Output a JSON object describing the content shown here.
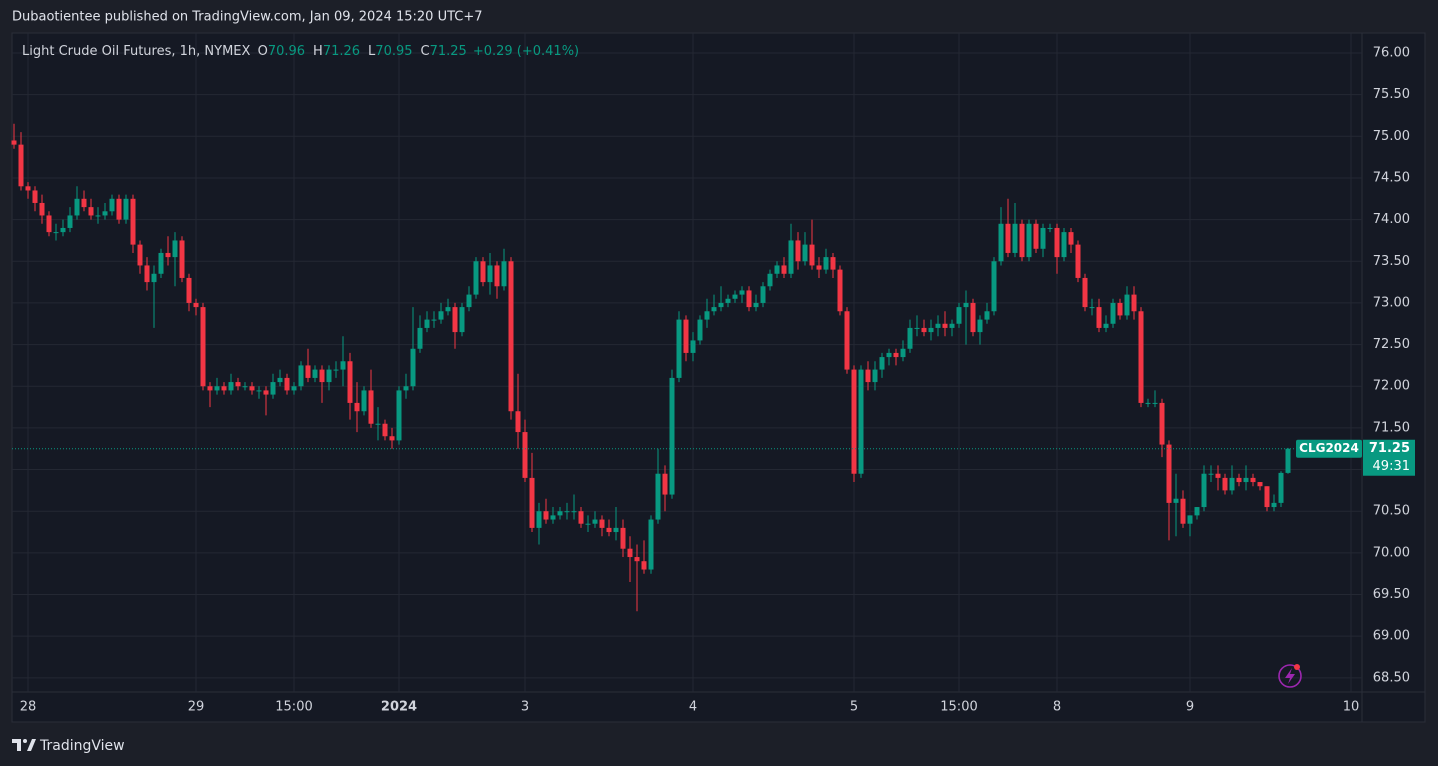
{
  "header": {
    "publisher": "Dubaotientee published on TradingView.com, Jan 09, 2024 15:20 UTC+7"
  },
  "footer": {
    "brand": "TradingView"
  },
  "chart_data": {
    "type": "candlestick",
    "title": "Light Crude Oil Futures, 1h, NYMEX",
    "ohlc_labels": [
      "O",
      "H",
      "L",
      "C"
    ],
    "change_label": "+0.29 (+0.41%)",
    "symbol": "CLG2024",
    "countdown": "49:31",
    "up_color": "#089981",
    "down_color": "#f23645",
    "grid": true,
    "ylim": [
      67.97,
      76.24
    ],
    "yticks": [
      {
        "value": 68.5,
        "label": "68.50"
      },
      {
        "value": 69,
        "label": "69.00"
      },
      {
        "value": 69.5,
        "label": "69.50"
      },
      {
        "value": 70,
        "label": "70.00"
      },
      {
        "value": 70.5,
        "label": "70.50"
      },
      {
        "value": 71,
        "label": "71.00"
      },
      {
        "value": 71.5,
        "label": "71.50"
      },
      {
        "value": 72,
        "label": "72.00"
      },
      {
        "value": 72.5,
        "label": "72.50"
      },
      {
        "value": 73,
        "label": "73.00"
      },
      {
        "value": 73.5,
        "label": "73.50"
      },
      {
        "value": 74,
        "label": "74.00"
      },
      {
        "value": 74.5,
        "label": "74.50"
      },
      {
        "value": 75,
        "label": "75.00"
      },
      {
        "value": 75.5,
        "label": "75.50"
      },
      {
        "value": 76,
        "label": "76.00"
      }
    ],
    "categories": [
      null,
      null,
      "28",
      null,
      null,
      null,
      null,
      null,
      null,
      null,
      null,
      null,
      null,
      null,
      null,
      null,
      null,
      null,
      null,
      null,
      null,
      null,
      null,
      null,
      null,
      null,
      "29",
      null,
      null,
      null,
      null,
      null,
      null,
      null,
      null,
      null,
      null,
      null,
      null,
      null,
      "15:00",
      null,
      null,
      null,
      null,
      null,
      null,
      null,
      null,
      null,
      null,
      null,
      null,
      null,
      null,
      "2024",
      null,
      null,
      null,
      null,
      null,
      null,
      null,
      null,
      null,
      null,
      null,
      null,
      null,
      null,
      null,
      null,
      null,
      "3",
      null,
      null,
      null,
      null,
      null,
      null,
      null,
      null,
      null,
      null,
      null,
      null,
      null,
      null,
      null,
      null,
      null,
      null,
      null,
      null,
      null,
      null,
      null,
      "4",
      null,
      null,
      null,
      null,
      null,
      null,
      null,
      null,
      null,
      null,
      null,
      null,
      null,
      null,
      null,
      null,
      null,
      null,
      null,
      null,
      null,
      null,
      "5",
      null,
      null,
      null,
      null,
      null,
      null,
      null,
      null,
      null,
      null,
      null,
      null,
      null,
      null,
      "15:00",
      null,
      null,
      null,
      null,
      null,
      null,
      null,
      null,
      null,
      null,
      null,
      null,
      null,
      "8",
      null,
      null,
      null,
      null,
      null,
      null,
      null,
      null,
      null,
      null,
      null,
      null,
      null,
      null,
      null,
      null,
      null,
      null,
      "9",
      null,
      null,
      null,
      null,
      null,
      null,
      null,
      null,
      null,
      null,
      null,
      null,
      null,
      null,
      null,
      null,
      null,
      null,
      null,
      null,
      null,
      null,
      "10"
    ],
    "open": [
      74.95,
      74.9,
      74.4,
      74.35,
      74.2,
      74.05,
      73.85,
      73.85,
      73.9,
      74.05,
      74.25,
      74.15,
      74.05,
      74.05,
      74.1,
      74.25,
      74.0,
      74.25,
      73.7,
      73.45,
      73.25,
      73.35,
      73.6,
      73.55,
      73.75,
      73.3,
      73.0,
      72.95,
      72.0,
      71.95,
      72.0,
      71.95,
      72.05,
      72.0,
      72.0,
      71.95,
      71.95,
      71.9,
      72.05,
      72.1,
      71.95,
      72.0,
      72.25,
      72.1,
      72.2,
      72.05,
      72.2,
      72.2,
      72.3,
      71.8,
      71.7,
      71.95,
      71.55,
      71.55,
      71.4,
      71.35,
      71.95,
      72.0,
      72.45,
      72.7,
      72.8,
      72.8,
      72.9,
      72.95,
      72.65,
      72.95,
      73.1,
      73.5,
      73.25,
      73.45,
      73.2,
      73.5,
      71.7,
      71.45,
      70.9,
      70.3,
      70.5,
      70.4,
      70.45,
      70.5,
      70.5,
      70.5,
      70.35,
      70.35,
      70.4,
      70.3,
      70.25,
      70.3,
      70.05,
      69.95,
      69.9,
      69.8,
      70.4,
      70.95,
      70.7,
      72.1,
      72.8,
      72.4,
      72.55,
      72.8,
      72.9,
      72.95,
      73.0,
      73.05,
      73.1,
      73.15,
      72.95,
      73.0,
      73.2,
      73.35,
      73.45,
      73.35,
      73.75,
      73.5,
      73.7,
      73.45,
      73.4,
      73.55,
      73.4,
      72.9,
      72.2,
      70.95,
      72.2,
      72.05,
      72.2,
      72.35,
      72.4,
      72.35,
      72.45,
      72.7,
      72.7,
      72.65,
      72.7,
      72.75,
      72.7,
      72.75,
      72.95,
      73.0,
      72.65,
      72.8,
      72.9,
      73.5,
      73.95,
      73.6,
      73.95,
      73.55,
      73.95,
      73.65,
      73.9,
      73.9,
      73.55,
      73.85,
      73.7,
      73.3,
      72.95,
      72.95,
      72.7,
      72.75,
      73.0,
      72.85,
      73.1,
      72.9,
      71.8,
      71.8,
      71.8,
      71.3,
      70.6,
      70.65,
      70.35,
      70.45,
      70.55,
      70.95,
      70.95,
      70.9,
      70.75,
      70.9,
      70.85,
      70.9,
      70.85,
      70.8,
      70.55,
      70.6,
      70.96,
      null,
      null,
      null,
      null,
      null,
      null,
      null,
      null,
      null
    ],
    "high": [
      75.15,
      75.05,
      74.45,
      74.4,
      74.3,
      74.1,
      73.95,
      74.0,
      74.15,
      74.4,
      74.35,
      74.25,
      74.15,
      74.2,
      74.3,
      74.3,
      74.3,
      74.3,
      73.75,
      73.55,
      73.45,
      73.65,
      73.8,
      73.85,
      73.8,
      73.35,
      73.05,
      73.0,
      72.05,
      72.1,
      72.05,
      72.15,
      72.1,
      72.05,
      72.05,
      72.0,
      72.0,
      72.15,
      72.2,
      72.15,
      72.05,
      72.3,
      72.45,
      72.25,
      72.25,
      72.25,
      72.3,
      72.6,
      72.4,
      72.05,
      72.0,
      72.2,
      71.75,
      71.6,
      71.5,
      72.0,
      72.15,
      72.95,
      72.85,
      72.9,
      72.9,
      73.0,
      73.05,
      73.0,
      73.0,
      73.2,
      73.55,
      73.55,
      73.6,
      73.5,
      73.65,
      73.55,
      72.15,
      71.6,
      71.2,
      70.6,
      70.65,
      70.55,
      70.55,
      70.6,
      70.7,
      70.55,
      70.45,
      70.5,
      70.45,
      70.4,
      70.55,
      70.4,
      70.2,
      70.1,
      70.15,
      70.45,
      71.25,
      71.05,
      72.2,
      72.9,
      72.85,
      72.65,
      72.85,
      73.05,
      73.1,
      73.2,
      73.1,
      73.15,
      73.2,
      73.2,
      73.1,
      73.25,
      73.4,
      73.5,
      73.55,
      73.95,
      73.85,
      73.85,
      74.0,
      73.55,
      73.65,
      73.6,
      73.45,
      72.95,
      72.25,
      72.25,
      72.3,
      72.3,
      72.4,
      72.45,
      72.45,
      72.55,
      72.8,
      72.85,
      72.8,
      72.8,
      72.85,
      72.9,
      72.8,
      73.0,
      73.15,
      73.05,
      72.85,
      73.0,
      73.55,
      74.15,
      74.25,
      74.2,
      74.0,
      74.0,
      74.0,
      73.95,
      73.95,
      73.95,
      73.9,
      73.9,
      73.75,
      73.35,
      73.05,
      73.05,
      72.85,
      73.05,
      73.05,
      73.2,
      73.2,
      72.95,
      71.85,
      71.95,
      71.85,
      71.35,
      70.95,
      70.75,
      70.45,
      70.55,
      71.05,
      71.05,
      71.05,
      70.95,
      71.05,
      70.95,
      71.05,
      70.95,
      70.85,
      70.8,
      70.7,
      70.98,
      71.26,
      null,
      null,
      null,
      null,
      null,
      null,
      null,
      null,
      null
    ],
    "low": [
      74.85,
      74.35,
      74.25,
      74.1,
      73.95,
      73.8,
      73.75,
      73.8,
      73.85,
      74.0,
      74.1,
      74.0,
      73.95,
      74.0,
      74.05,
      73.95,
      73.95,
      73.6,
      73.35,
      73.15,
      72.7,
      73.3,
      73.45,
      73.2,
      73.25,
      72.9,
      72.85,
      71.95,
      71.75,
      71.9,
      71.9,
      71.9,
      71.95,
      71.95,
      71.9,
      71.85,
      71.65,
      71.85,
      72.0,
      71.9,
      71.9,
      71.95,
      72.05,
      72.05,
      71.8,
      71.95,
      72.1,
      72.0,
      71.6,
      71.45,
      71.65,
      71.5,
      71.35,
      71.35,
      71.25,
      71.3,
      71.85,
      71.95,
      72.4,
      72.65,
      72.7,
      72.75,
      72.85,
      72.45,
      72.6,
      72.9,
      73.05,
      73.2,
      73.1,
      73.05,
      73.15,
      71.6,
      71.25,
      70.85,
      70.25,
      70.1,
      70.35,
      70.35,
      70.4,
      70.4,
      70.4,
      70.3,
      70.25,
      70.3,
      70.2,
      70.2,
      70.15,
      69.95,
      69.65,
      69.3,
      69.75,
      69.75,
      70.35,
      70.5,
      70.65,
      72.05,
      72.3,
      72.3,
      72.5,
      72.7,
      72.85,
      72.9,
      72.95,
      73.0,
      73.0,
      72.9,
      72.9,
      72.95,
      73.15,
      73.3,
      73.3,
      73.3,
      73.4,
      73.45,
      73.4,
      73.3,
      73.35,
      73.3,
      72.85,
      72.15,
      70.85,
      70.9,
      71.95,
      71.95,
      72.1,
      72.25,
      72.25,
      72.3,
      72.4,
      72.6,
      72.6,
      72.55,
      72.6,
      72.6,
      72.6,
      72.7,
      72.5,
      72.6,
      72.5,
      72.75,
      72.85,
      73.45,
      73.55,
      73.55,
      73.5,
      73.5,
      73.6,
      73.55,
      73.85,
      73.35,
      73.5,
      73.6,
      73.25,
      72.9,
      72.85,
      72.65,
      72.65,
      72.7,
      72.8,
      72.8,
      72.8,
      71.75,
      71.75,
      71.75,
      71.15,
      70.15,
      70.2,
      70.3,
      70.2,
      70.4,
      70.5,
      70.85,
      70.75,
      70.7,
      70.7,
      70.8,
      70.75,
      70.8,
      70.75,
      70.5,
      70.5,
      70.55,
      70.95,
      null,
      null,
      null,
      null,
      null,
      null,
      null,
      null,
      null
    ],
    "close": [
      74.9,
      74.4,
      74.35,
      74.2,
      74.05,
      73.85,
      73.85,
      73.9,
      74.05,
      74.25,
      74.15,
      74.05,
      74.05,
      74.1,
      74.25,
      74.0,
      74.25,
      73.7,
      73.45,
      73.25,
      73.35,
      73.6,
      73.55,
      73.75,
      73.3,
      73.0,
      72.95,
      72.0,
      71.95,
      72.0,
      71.95,
      72.05,
      72.0,
      72.0,
      71.95,
      71.95,
      71.9,
      72.05,
      72.1,
      71.95,
      72.0,
      72.25,
      72.1,
      72.2,
      72.05,
      72.2,
      72.2,
      72.3,
      71.8,
      71.7,
      71.95,
      71.55,
      71.55,
      71.4,
      71.35,
      71.95,
      72.0,
      72.45,
      72.7,
      72.8,
      72.8,
      72.9,
      72.95,
      72.65,
      72.95,
      73.1,
      73.5,
      73.25,
      73.45,
      73.2,
      73.5,
      71.7,
      71.45,
      70.9,
      70.3,
      70.5,
      70.4,
      70.45,
      70.5,
      70.5,
      70.5,
      70.35,
      70.35,
      70.4,
      70.3,
      70.25,
      70.3,
      70.05,
      69.95,
      69.9,
      69.8,
      70.4,
      70.95,
      70.7,
      72.1,
      72.8,
      72.4,
      72.55,
      72.8,
      72.9,
      72.95,
      73.0,
      73.05,
      73.1,
      73.15,
      72.95,
      73.0,
      73.2,
      73.35,
      73.45,
      73.35,
      73.75,
      73.5,
      73.7,
      73.45,
      73.4,
      73.55,
      73.4,
      72.9,
      72.2,
      70.95,
      72.2,
      72.05,
      72.2,
      72.35,
      72.4,
      72.35,
      72.45,
      72.7,
      72.7,
      72.65,
      72.7,
      72.75,
      72.7,
      72.75,
      72.95,
      73.0,
      72.65,
      72.8,
      72.9,
      73.5,
      73.95,
      73.6,
      73.95,
      73.55,
      73.95,
      73.65,
      73.9,
      73.9,
      73.55,
      73.85,
      73.7,
      73.3,
      72.95,
      72.95,
      72.7,
      72.75,
      73.0,
      72.85,
      73.1,
      72.9,
      71.8,
      71.8,
      71.8,
      71.3,
      70.6,
      70.65,
      70.35,
      70.45,
      70.55,
      70.95,
      70.95,
      70.9,
      70.75,
      70.9,
      70.85,
      70.9,
      70.85,
      70.8,
      70.55,
      70.6,
      70.96,
      71.25,
      null,
      null,
      null,
      null,
      null,
      null,
      null,
      null,
      null
    ]
  }
}
